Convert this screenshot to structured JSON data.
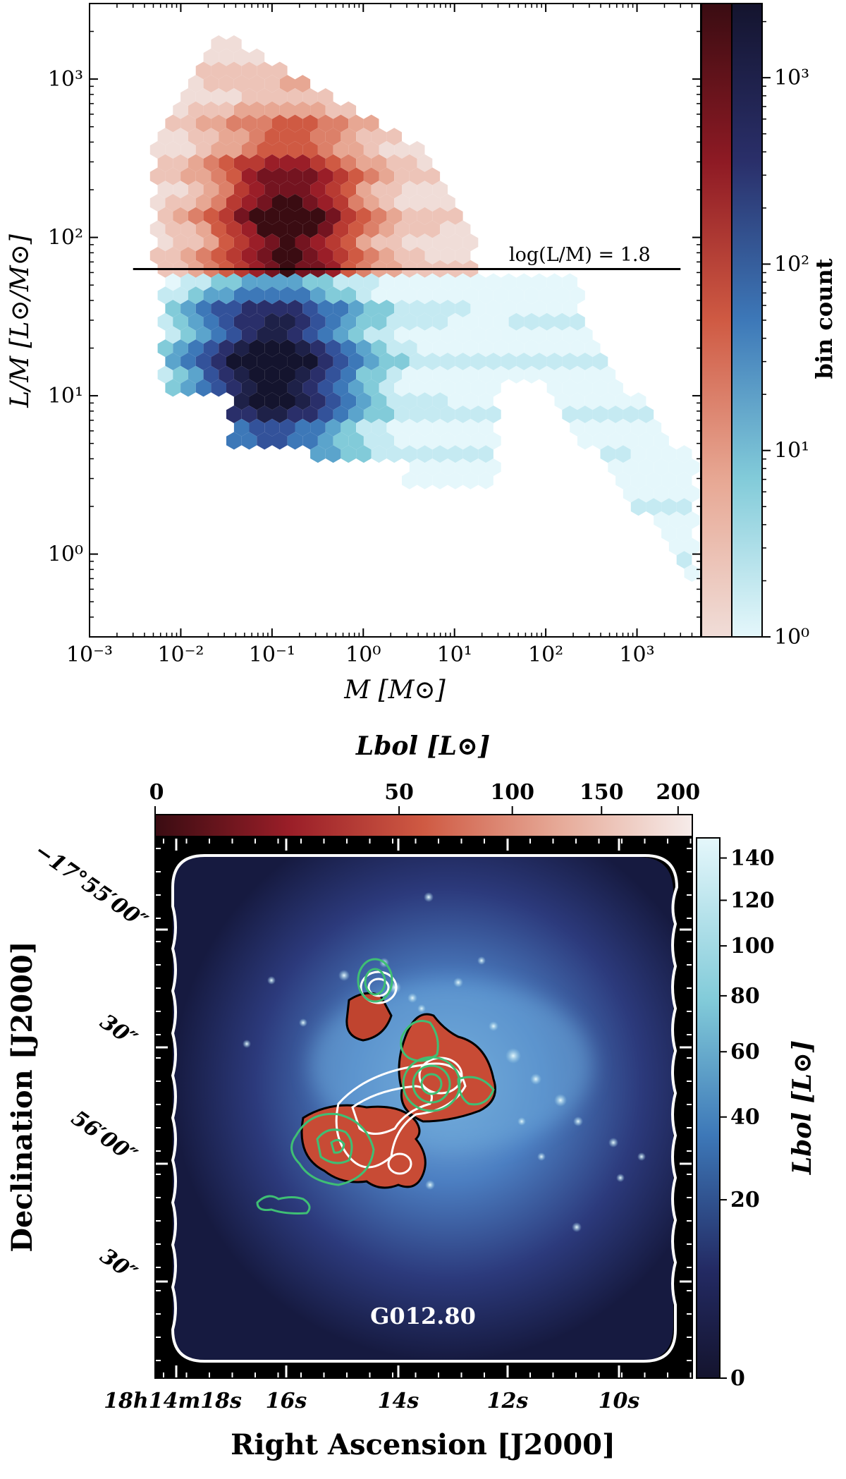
{
  "chart_data": [
    {
      "type": "heatmap",
      "subtype": "hexbin",
      "xlabel": "M [M⊙]",
      "ylabel": "L/M [L⊙/M⊙]",
      "xscale": "log",
      "yscale": "log",
      "xlim": [
        0.001,
        5000
      ],
      "ylim": [
        0.3,
        3000
      ],
      "xticks": [
        "10⁻³",
        "10⁻²",
        "10⁻¹",
        "10⁰",
        "10¹",
        "10²",
        "10³"
      ],
      "yticks": [
        "10⁰",
        "10¹",
        "10²",
        "10³"
      ],
      "threshold_line": {
        "y": 63.1,
        "x_range": [
          0.003,
          3000
        ],
        "label": "log(L/M) = 1.8"
      },
      "colorbar": {
        "label": "bin count",
        "scale": "log",
        "range": [
          1,
          2500
        ],
        "ticks": [
          "10⁰",
          "10¹",
          "10²",
          "10³"
        ],
        "cmap_above": "reds (light pink → dark red)",
        "cmap_below": "blues (light cyan → dark navy)"
      },
      "regions": [
        {
          "name": "above",
          "x_range": [
            0.005,
            20
          ],
          "y_range": [
            63,
            1800
          ],
          "peak_x": 0.15,
          "peak_y": 120
        },
        {
          "name": "below",
          "x_range": [
            0.005,
            300
          ],
          "y_range": [
            0.85,
            63
          ],
          "peak_x": 0.1,
          "peak_y": 15
        }
      ]
    },
    {
      "type": "heatmap",
      "subtype": "sky-map",
      "xlabel": "Right Ascension [J2000]",
      "ylabel": "Declination [J2000]",
      "xticks": [
        "18h14m18s",
        "16s",
        "14s",
        "12s",
        "10s"
      ],
      "yticks": [
        "−17°55′00″",
        "30″",
        "56′00″",
        "30″"
      ],
      "label": "G012.80",
      "colorbar_right": {
        "label": "Lbol [L⊙]",
        "range": [
          0,
          150
        ],
        "ticks": [
          "0",
          "20",
          "40",
          "60",
          "80",
          "100",
          "120",
          "140"
        ]
      },
      "colorbar_top": {
        "label": "Lbol [L⊙]",
        "range": [
          0,
          210
        ],
        "ticks": [
          "0",
          "50",
          "100",
          "150",
          "200"
        ]
      }
    }
  ],
  "colors": {
    "red_dark": "#3a0c12",
    "red_mid": "#c44a3a",
    "red_light": "#f0ddd8",
    "blue_dark": "#14142e",
    "blue_mid": "#3d78b8",
    "blue_light": "#e5f7fb",
    "contour_green": "#3fbf74",
    "contour_white": "#ffffff"
  }
}
